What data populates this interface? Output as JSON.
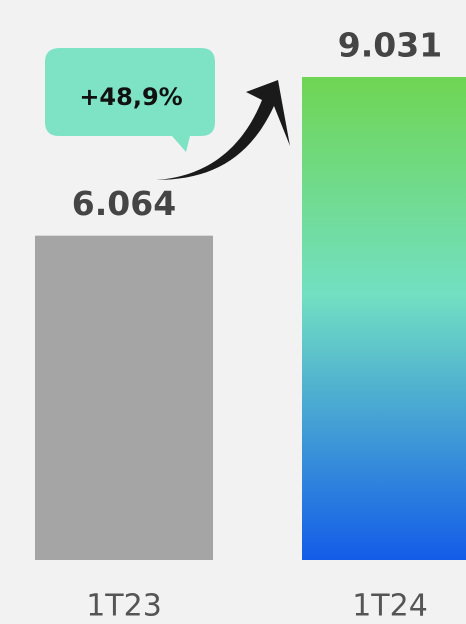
{
  "chart_data": {
    "type": "bar",
    "categories": [
      "1T23",
      "1T24"
    ],
    "values": [
      6064,
      9031
    ],
    "value_labels": [
      "6.064",
      "9.031"
    ],
    "annotation": "+48,9%"
  }
}
